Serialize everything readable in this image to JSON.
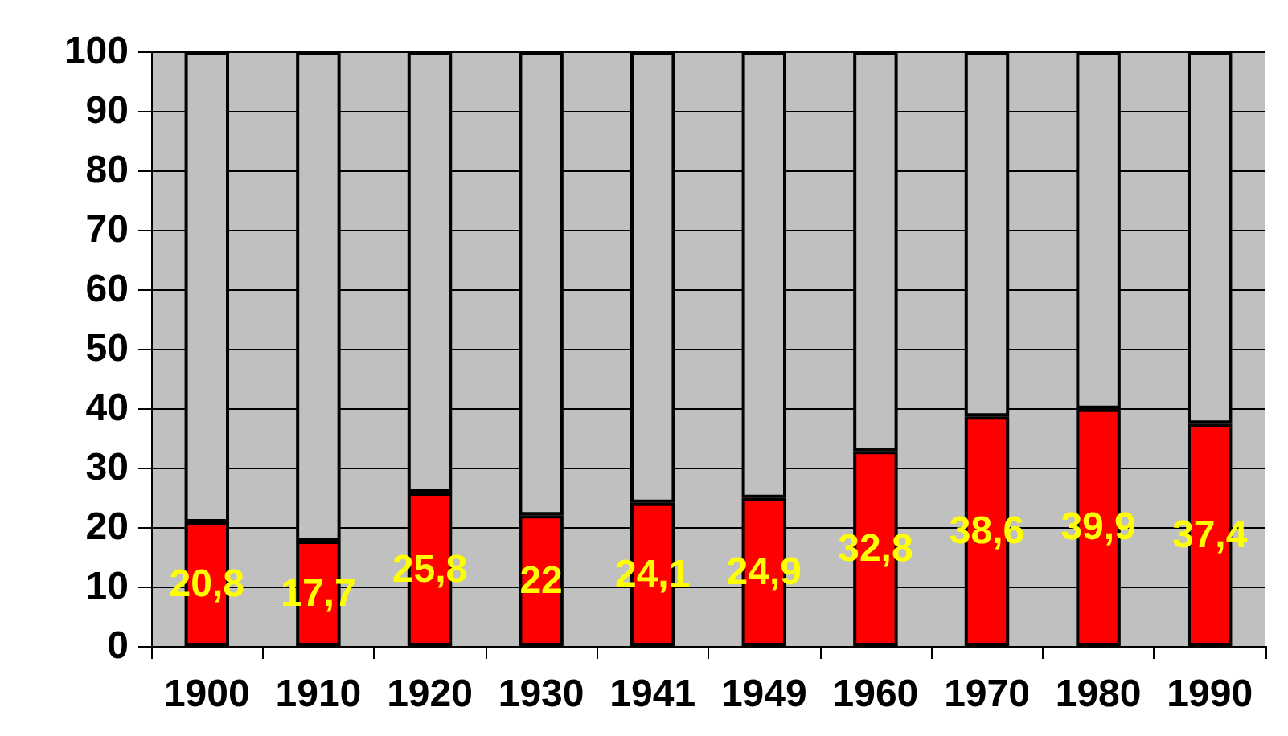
{
  "chart_data": {
    "type": "bar",
    "stacked": true,
    "categories": [
      "1900",
      "1910",
      "1920",
      "1930",
      "1941",
      "1949",
      "1960",
      "1970",
      "1980",
      "1990"
    ],
    "series": [
      {
        "color": "#ff0000",
        "values": [
          20.8,
          17.7,
          25.8,
          22,
          24.1,
          24.9,
          32.8,
          38.6,
          39.9,
          37.4
        ],
        "value_labels": [
          "20,8",
          "17,7",
          "25,8",
          "22",
          "24,1",
          "24,9",
          "32,8",
          "38,6",
          "39,9",
          "37,4"
        ]
      },
      {
        "color": "#c0c0c0",
        "values": [
          79.2,
          82.3,
          74.2,
          78,
          75.9,
          75.1,
          67.2,
          61.4,
          60.1,
          62.6
        ]
      }
    ],
    "ylim": [
      0,
      100
    ],
    "yticks": [
      0,
      10,
      20,
      30,
      40,
      50,
      60,
      70,
      80,
      90,
      100
    ],
    "grid": "y"
  }
}
